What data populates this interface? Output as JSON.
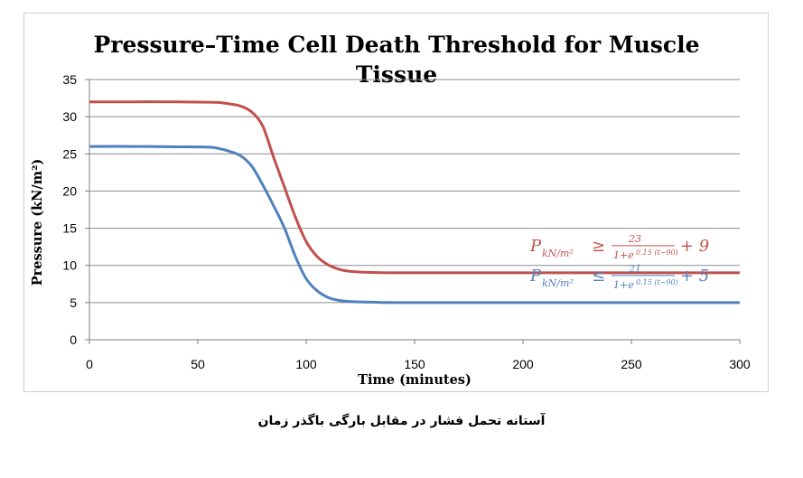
{
  "chart_data": {
    "type": "line",
    "title_line1": "Pressure–Time Cell Death Threshold for Muscle",
    "title_line2": "Tissue",
    "xlabel": "Time (minutes)",
    "ylabel": "Pressure (kN/m²)",
    "xlim": [
      0,
      300
    ],
    "ylim": [
      0,
      35
    ],
    "x_ticks": [
      "0",
      "50",
      "100",
      "150",
      "200",
      "250",
      "300"
    ],
    "y_ticks": [
      "0",
      "5",
      "10",
      "15",
      "20",
      "25",
      "30",
      "35"
    ],
    "grid": "horizontal",
    "series": [
      {
        "color": "#c0504d",
        "formula": {
          "lhs": "P",
          "sub": "kN/m²",
          "op": "≥",
          "num": "23",
          "den": "1+e",
          "exp": "0.15 (t−90)",
          "tail": "+ 9"
        },
        "x": [
          0,
          20,
          40,
          55,
          60,
          65,
          70,
          75,
          80,
          85,
          90,
          95,
          100,
          105,
          110,
          115,
          120,
          130,
          140,
          160,
          200,
          250,
          300
        ],
        "y": [
          32.0,
          32.0,
          32.0,
          31.95,
          31.9,
          31.7,
          31.4,
          30.6,
          28.7,
          24.5,
          20.5,
          16.5,
          13.2,
          11.2,
          10.1,
          9.5,
          9.2,
          9.05,
          9.0,
          9.0,
          9.0,
          9.0,
          9.0
        ]
      },
      {
        "color": "#4f81bd",
        "formula": {
          "lhs": "P",
          "sub": "kN/m²",
          "op": "≤",
          "num": "21",
          "den": "1+e",
          "exp": "0.15 (t−90)",
          "tail": "+ 5"
        },
        "x": [
          0,
          20,
          40,
          55,
          60,
          65,
          70,
          75,
          80,
          85,
          90,
          95,
          100,
          105,
          110,
          115,
          120,
          130,
          140,
          160,
          200,
          250,
          300
        ],
        "y": [
          26.0,
          26.0,
          25.95,
          25.9,
          25.7,
          25.3,
          24.7,
          23.3,
          20.8,
          18.0,
          15.0,
          11.2,
          8.2,
          6.6,
          5.7,
          5.3,
          5.15,
          5.05,
          5.0,
          5.0,
          5.0,
          5.0,
          5.0
        ]
      }
    ]
  },
  "caption": "آستانه تحمل فشار در مقابل بارگی باگذر زمان"
}
